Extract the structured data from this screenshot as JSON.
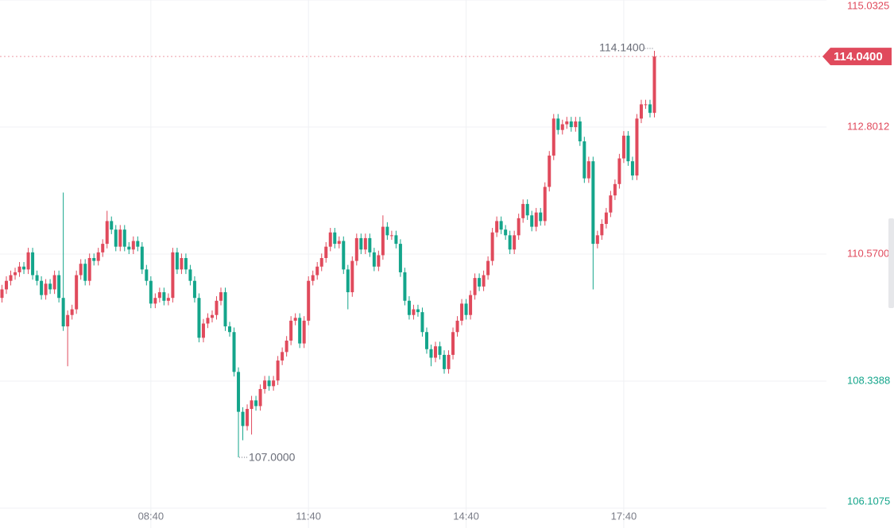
{
  "chart_data": {
    "type": "candlestick",
    "categories": [
      null,
      null,
      null,
      null,
      null,
      null,
      null,
      null,
      null,
      null,
      null,
      null,
      null,
      null,
      null,
      null,
      null,
      null,
      null,
      null,
      null,
      null,
      null,
      null,
      null,
      null,
      null,
      null,
      null,
      null,
      null,
      null,
      null,
      null,
      "08:40",
      null,
      null,
      null,
      null,
      null,
      null,
      null,
      null,
      null,
      null,
      null,
      null,
      null,
      null,
      null,
      null,
      null,
      null,
      null,
      null,
      null,
      null,
      null,
      null,
      null,
      null,
      null,
      null,
      null,
      null,
      null,
      null,
      null,
      null,
      null,
      "11:40",
      null,
      null,
      null,
      null,
      null,
      null,
      null,
      null,
      null,
      null,
      null,
      null,
      null,
      null,
      null,
      null,
      null,
      null,
      null,
      null,
      null,
      null,
      null,
      null,
      null,
      null,
      null,
      null,
      null,
      null,
      null,
      null,
      null,
      null,
      null,
      "14:40",
      null,
      null,
      null,
      null,
      null,
      null,
      null,
      null,
      null,
      null,
      null,
      null,
      null,
      null,
      null,
      null,
      null,
      null,
      null,
      null,
      null,
      null,
      null,
      null,
      null,
      null,
      null,
      null,
      null,
      null,
      null,
      null,
      null,
      null,
      null,
      "17:40",
      null,
      null,
      null,
      null,
      null,
      null,
      null
    ],
    "open": [
      109.8,
      109.95,
      110.1,
      110.2,
      110.25,
      110.35,
      110.3,
      110.6,
      110.2,
      110.1,
      109.85,
      110.05,
      109.95,
      110.2,
      109.8,
      109.3,
      109.5,
      109.6,
      110.2,
      110.4,
      110.1,
      110.5,
      110.45,
      110.6,
      110.75,
      111.15,
      111.0,
      110.7,
      111.0,
      110.7,
      110.65,
      110.8,
      110.7,
      110.3,
      110.1,
      109.7,
      109.8,
      109.9,
      109.75,
      109.8,
      110.6,
      110.3,
      110.5,
      110.3,
      110.1,
      109.8,
      109.1,
      109.35,
      109.45,
      109.5,
      109.75,
      109.9,
      109.3,
      109.2,
      108.5,
      107.8,
      107.55,
      107.85,
      108.0,
      107.9,
      108.2,
      108.35,
      108.25,
      108.35,
      108.7,
      108.85,
      109.05,
      109.4,
      109.45,
      109.0,
      109.4,
      110.1,
      110.2,
      110.35,
      110.5,
      110.7,
      110.95,
      110.75,
      110.8,
      110.3,
      109.9,
      110.45,
      110.85,
      110.65,
      110.85,
      110.6,
      110.35,
      110.55,
      111.05,
      110.9,
      110.9,
      110.75,
      110.25,
      109.75,
      109.5,
      109.6,
      109.55,
      109.2,
      108.9,
      108.75,
      108.95,
      108.8,
      108.55,
      108.8,
      109.2,
      109.4,
      109.7,
      109.5,
      109.85,
      110.15,
      110.0,
      110.2,
      110.45,
      110.95,
      111.15,
      111.0,
      110.9,
      110.65,
      110.9,
      111.2,
      111.45,
      111.25,
      111.05,
      111.3,
      111.15,
      111.75,
      112.3,
      112.95,
      112.75,
      112.85,
      112.9,
      112.8,
      112.9,
      112.55,
      111.9,
      112.2,
      110.75,
      110.9,
      111.1,
      111.3,
      111.6,
      111.8,
      112.25,
      112.65,
      112.2,
      111.95,
      112.95,
      113.2,
      113.2,
      113.05
    ],
    "high": [
      110.03,
      110.18,
      110.28,
      110.33,
      110.43,
      110.43,
      110.68,
      110.68,
      110.28,
      110.18,
      110.13,
      110.13,
      110.28,
      110.28,
      111.65,
      109.58,
      109.68,
      110.28,
      110.48,
      110.48,
      110.58,
      110.58,
      110.68,
      110.83,
      111.33,
      111.23,
      111.08,
      111.08,
      111.08,
      110.78,
      110.88,
      110.88,
      110.78,
      110.38,
      110.18,
      109.88,
      109.98,
      109.98,
      109.88,
      110.68,
      110.68,
      110.58,
      110.58,
      110.38,
      110.18,
      109.88,
      109.43,
      109.53,
      109.58,
      109.83,
      109.98,
      109.98,
      109.38,
      109.28,
      108.58,
      107.88,
      107.93,
      108.08,
      108.08,
      108.28,
      108.43,
      108.43,
      108.43,
      108.78,
      108.93,
      109.13,
      109.48,
      109.53,
      109.53,
      109.48,
      110.18,
      110.28,
      110.43,
      110.58,
      110.78,
      111.03,
      111.03,
      110.88,
      110.88,
      110.38,
      110.53,
      110.93,
      110.93,
      110.93,
      110.93,
      110.68,
      110.63,
      111.25,
      111.13,
      110.98,
      110.98,
      110.83,
      110.33,
      109.83,
      109.68,
      109.68,
      109.63,
      109.28,
      108.98,
      109.03,
      109.03,
      108.88,
      108.88,
      109.28,
      109.48,
      109.78,
      109.78,
      109.93,
      110.23,
      110.23,
      110.28,
      110.53,
      111.03,
      111.23,
      111.23,
      111.08,
      110.98,
      110.98,
      111.28,
      111.53,
      111.53,
      111.33,
      111.38,
      111.38,
      111.83,
      112.38,
      113.03,
      113.03,
      112.93,
      112.98,
      112.98,
      112.98,
      112.98,
      112.63,
      112.28,
      112.28,
      110.98,
      111.18,
      111.38,
      111.68,
      111.88,
      112.33,
      112.73,
      112.73,
      112.28,
      113.03,
      113.28,
      113.28,
      113.28,
      114.14
    ],
    "low": [
      109.72,
      109.87,
      110.02,
      110.12,
      110.17,
      110.22,
      110.22,
      110.12,
      110.02,
      109.77,
      109.77,
      109.87,
      109.87,
      109.72,
      109.22,
      108.6,
      109.42,
      109.52,
      110.12,
      110.02,
      110.02,
      110.37,
      110.37,
      110.52,
      110.67,
      110.92,
      110.62,
      110.62,
      110.62,
      110.57,
      110.57,
      110.62,
      110.22,
      110.02,
      109.62,
      109.62,
      109.72,
      109.67,
      109.67,
      109.72,
      110.22,
      110.22,
      110.22,
      110.02,
      109.72,
      109.02,
      109.02,
      109.27,
      109.37,
      109.42,
      109.67,
      109.22,
      109.12,
      108.42,
      107.0,
      107.3,
      107.47,
      107.4,
      107.82,
      107.82,
      108.12,
      108.17,
      108.17,
      108.27,
      108.62,
      108.77,
      108.97,
      109.32,
      108.92,
      108.92,
      109.32,
      110.02,
      110.12,
      110.27,
      110.42,
      110.62,
      110.67,
      110.67,
      110.22,
      109.6,
      109.82,
      110.37,
      110.57,
      110.57,
      110.52,
      110.27,
      110.27,
      110.47,
      110.82,
      110.82,
      110.67,
      110.17,
      109.67,
      109.42,
      109.42,
      109.47,
      109.12,
      108.82,
      108.6,
      108.67,
      108.72,
      108.47,
      108.47,
      108.72,
      109.12,
      109.32,
      109.42,
      109.42,
      109.77,
      109.92,
      109.92,
      110.12,
      110.37,
      110.87,
      110.92,
      110.82,
      110.57,
      110.57,
      110.82,
      111.12,
      111.17,
      110.97,
      110.97,
      111.07,
      111.07,
      111.67,
      112.22,
      112.67,
      112.67,
      112.77,
      112.72,
      112.72,
      112.47,
      111.82,
      111.82,
      109.95,
      110.67,
      110.82,
      111.02,
      111.22,
      111.52,
      111.72,
      112.17,
      112.12,
      111.87,
      111.87,
      112.87,
      113.12,
      112.97,
      112.97
    ],
    "close": [
      109.95,
      110.1,
      110.2,
      110.25,
      110.35,
      110.3,
      110.6,
      110.2,
      110.1,
      109.85,
      110.05,
      109.95,
      110.2,
      109.8,
      109.3,
      109.5,
      109.6,
      110.2,
      110.4,
      110.1,
      110.5,
      110.45,
      110.6,
      110.75,
      111.15,
      111.0,
      110.7,
      111.0,
      110.7,
      110.65,
      110.8,
      110.7,
      110.3,
      110.1,
      109.7,
      109.8,
      109.9,
      109.75,
      109.8,
      110.6,
      110.3,
      110.5,
      110.3,
      110.1,
      109.8,
      109.1,
      109.35,
      109.45,
      109.5,
      109.75,
      109.9,
      109.3,
      109.2,
      108.5,
      107.8,
      107.55,
      107.85,
      108.0,
      107.9,
      108.2,
      108.35,
      108.25,
      108.35,
      108.7,
      108.85,
      109.05,
      109.4,
      109.45,
      109.0,
      109.4,
      110.1,
      110.2,
      110.35,
      110.5,
      110.7,
      110.95,
      110.75,
      110.8,
      110.3,
      109.9,
      110.45,
      110.85,
      110.65,
      110.85,
      110.6,
      110.35,
      110.55,
      111.05,
      110.9,
      110.9,
      110.75,
      110.25,
      109.75,
      109.5,
      109.6,
      109.55,
      109.2,
      108.9,
      108.75,
      108.95,
      108.8,
      108.55,
      108.8,
      109.2,
      109.4,
      109.7,
      109.5,
      109.85,
      110.15,
      110.0,
      110.2,
      110.45,
      110.95,
      111.15,
      111.0,
      110.9,
      110.65,
      110.9,
      111.2,
      111.45,
      111.25,
      111.05,
      111.3,
      111.15,
      111.75,
      112.3,
      112.95,
      112.75,
      112.85,
      112.9,
      112.8,
      112.9,
      112.55,
      111.9,
      112.2,
      110.75,
      110.9,
      111.1,
      111.3,
      111.6,
      111.8,
      112.25,
      112.65,
      112.2,
      111.95,
      112.95,
      113.2,
      113.2,
      113.05,
      114.04
    ],
    "up_color": "#e04a5c",
    "down_color": "#14a58b",
    "ylim": [
      106.1075,
      115.0325
    ],
    "yticks": [
      106.1075,
      108.3388,
      {
        "value": 110.57,
        "label": "110.5700"
      },
      112.8012,
      115.0325
    ],
    "grid": true,
    "max_label": {
      "value": 114.14,
      "label": "114.1400"
    },
    "min_label": {
      "value": 107.0,
      "label": "107.0000"
    },
    "last_price": {
      "value": 114.04,
      "label": "114.0400"
    }
  }
}
